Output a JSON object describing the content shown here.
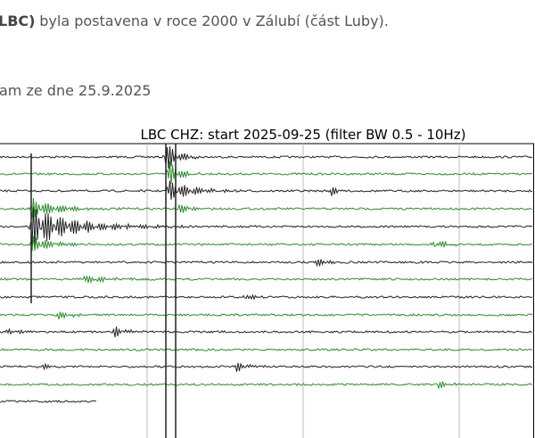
{
  "page": {
    "intro_bold": "LBC)",
    "intro_text": "byla postavena v roce 2000 v Zálubí (část Luby).",
    "caption": "am ze dne 25.9.2025",
    "seismogram_title": "LBC CHZ: start 2025-09-25 (filter BW 0.5 - 10Hz)"
  }
}
